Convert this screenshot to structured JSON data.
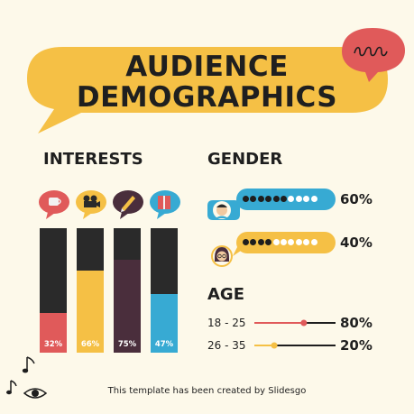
{
  "title": {
    "line1": "AUDIENCE",
    "line2": "DEMOGRAPHICS"
  },
  "interests": {
    "heading": "INTERESTS",
    "bars": [
      {
        "name": "coffee",
        "value": 32,
        "label": "32%",
        "color": "#e05a5a",
        "icon": "coffee-cup-icon",
        "bubble": "#e05a5a"
      },
      {
        "name": "film",
        "value": 66,
        "label": "66%",
        "color": "#f5c045",
        "icon": "film-camera-icon",
        "bubble": "#f5c045"
      },
      {
        "name": "writing",
        "value": 75,
        "label": "75%",
        "color": "#4a2e3c",
        "icon": "pen-icon",
        "bubble": "#4a2e3c"
      },
      {
        "name": "reading",
        "value": 47,
        "label": "47%",
        "color": "#37aad3",
        "icon": "book-icon",
        "bubble": "#37aad3"
      }
    ]
  },
  "gender": {
    "heading": "GENDER",
    "rows": [
      {
        "name": "man",
        "value": 60,
        "label": "60%",
        "color": "#37aad3",
        "avatar": "man-avatar-icon"
      },
      {
        "name": "woman",
        "value": 40,
        "label": "40%",
        "color": "#f5c045",
        "avatar": "woman-avatar-icon"
      }
    ]
  },
  "age": {
    "heading": "AGE",
    "rows": [
      {
        "range": "18 - 25",
        "value": 80,
        "label": "80%",
        "color": "#e05a5a"
      },
      {
        "range": "26 - 35",
        "value": 20,
        "label": "20%",
        "color": "#f5c045"
      }
    ]
  },
  "footer": "This template has been created by Slidesgo",
  "colors": {
    "background": "#fdf9ea",
    "accent_yellow": "#f5c045",
    "accent_red": "#e05a5a",
    "dark": "#2a2a2a"
  }
}
